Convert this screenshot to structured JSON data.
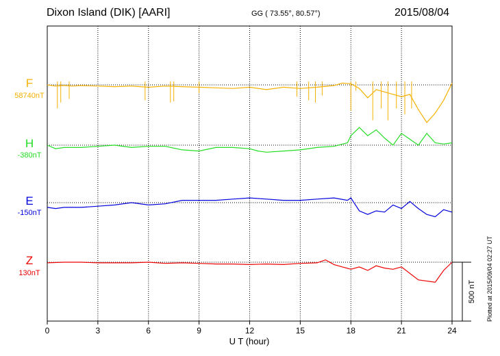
{
  "header": {
    "station": "Dixon Island (DIK)  [AARI]",
    "coords": "GG ( 73.55°,  80.57°)",
    "date": "2015/08/04"
  },
  "footer": {
    "plotted": "Plotted at 2015/09/04 02:27 UT"
  },
  "colors": {
    "F": "#f5b000",
    "H": "#22dd22",
    "E": "#0000dd",
    "Z": "#ee0000"
  },
  "chart_data": {
    "type": "line",
    "xlabel": "U T (hour)",
    "xlim": [
      0,
      24
    ],
    "xticks": [
      "0",
      "3",
      "6",
      "9",
      "12",
      "15",
      "18",
      "21",
      "24"
    ],
    "scale_bar": {
      "label": "500 nT",
      "value_nT": 500
    },
    "series": [
      {
        "name": "F",
        "baseline_label": "58740nT",
        "color": "#f5b000",
        "points": [
          [
            0,
            0
          ],
          [
            0.5,
            -10
          ],
          [
            1,
            -5
          ],
          [
            1.5,
            -10
          ],
          [
            2,
            -5
          ],
          [
            3,
            -10
          ],
          [
            4,
            -15
          ],
          [
            5,
            -10
          ],
          [
            5.5,
            -15
          ],
          [
            6,
            -20
          ],
          [
            7,
            -10
          ],
          [
            8,
            -15
          ],
          [
            9,
            -20
          ],
          [
            10,
            -25
          ],
          [
            11,
            -30
          ],
          [
            12,
            -20
          ],
          [
            13,
            -40
          ],
          [
            14,
            -20
          ],
          [
            15,
            -30
          ],
          [
            16,
            -20
          ],
          [
            17,
            -5
          ],
          [
            17.5,
            15
          ],
          [
            18,
            10
          ],
          [
            18.5,
            -30
          ],
          [
            19,
            -110
          ],
          [
            19.5,
            -40
          ],
          [
            20,
            -60
          ],
          [
            20.5,
            -80
          ],
          [
            21,
            -100
          ],
          [
            21.5,
            -80
          ],
          [
            22,
            -210
          ],
          [
            22.5,
            -320
          ],
          [
            23,
            -240
          ],
          [
            23.5,
            -130
          ],
          [
            24,
            15
          ]
        ],
        "spikes": [
          [
            0.6,
            200
          ],
          [
            0.8,
            150
          ],
          [
            1.3,
            120
          ],
          [
            5.8,
            130
          ],
          [
            7.3,
            150
          ],
          [
            7.5,
            140
          ],
          [
            9,
            70
          ],
          [
            14.8,
            100
          ],
          [
            15.5,
            130
          ],
          [
            15.9,
            150
          ],
          [
            16.3,
            90
          ],
          [
            18,
            220
          ],
          [
            18.3,
            50
          ],
          [
            19.3,
            300
          ],
          [
            19.8,
            200
          ],
          [
            20.2,
            300
          ],
          [
            20.7,
            200
          ],
          [
            21.2,
            250
          ],
          [
            21.6,
            200
          ]
        ]
      },
      {
        "name": "H",
        "baseline_label": "-380nT",
        "color": "#22dd22",
        "points": [
          [
            0,
            0
          ],
          [
            0.5,
            -30
          ],
          [
            1,
            -20
          ],
          [
            2,
            -20
          ],
          [
            3,
            -10
          ],
          [
            4,
            0
          ],
          [
            5,
            -20
          ],
          [
            6,
            -10
          ],
          [
            7,
            -10
          ],
          [
            8,
            -40
          ],
          [
            9,
            -50
          ],
          [
            10,
            -20
          ],
          [
            11,
            -20
          ],
          [
            12,
            -30
          ],
          [
            12.5,
            -50
          ],
          [
            13,
            -60
          ],
          [
            14,
            -50
          ],
          [
            15,
            -40
          ],
          [
            16,
            -20
          ],
          [
            17,
            -10
          ],
          [
            17.8,
            20
          ],
          [
            18,
            80
          ],
          [
            18.5,
            150
          ],
          [
            19,
            80
          ],
          [
            19.5,
            130
          ],
          [
            20,
            60
          ],
          [
            20.5,
            0
          ],
          [
            21,
            100
          ],
          [
            21.5,
            50
          ],
          [
            22,
            0
          ],
          [
            22.5,
            100
          ],
          [
            23,
            20
          ],
          [
            23.5,
            10
          ],
          [
            24,
            20
          ]
        ]
      },
      {
        "name": "E",
        "baseline_label": "-150nT",
        "color": "#0000dd",
        "points": [
          [
            0,
            -40
          ],
          [
            0.5,
            -50
          ],
          [
            1,
            -40
          ],
          [
            2,
            -40
          ],
          [
            3,
            -30
          ],
          [
            4,
            -20
          ],
          [
            5,
            0
          ],
          [
            6,
            -20
          ],
          [
            7,
            -10
          ],
          [
            8,
            20
          ],
          [
            9,
            20
          ],
          [
            10,
            20
          ],
          [
            11,
            30
          ],
          [
            12,
            40
          ],
          [
            13,
            30
          ],
          [
            14,
            20
          ],
          [
            15,
            20
          ],
          [
            16,
            30
          ],
          [
            17,
            40
          ],
          [
            17.8,
            20
          ],
          [
            18,
            40
          ],
          [
            18.5,
            -70
          ],
          [
            19,
            -100
          ],
          [
            19.5,
            -70
          ],
          [
            20,
            -80
          ],
          [
            20.5,
            -20
          ],
          [
            21,
            -50
          ],
          [
            21.5,
            10
          ],
          [
            22,
            -50
          ],
          [
            22.5,
            -100
          ],
          [
            23,
            -120
          ],
          [
            23.5,
            -60
          ],
          [
            24,
            -80
          ]
        ]
      },
      {
        "name": "Z",
        "baseline_label": "130nT",
        "color": "#ee0000",
        "points": [
          [
            0,
            -5
          ],
          [
            1,
            0
          ],
          [
            2,
            0
          ],
          [
            3,
            -5
          ],
          [
            4,
            -5
          ],
          [
            5,
            -5
          ],
          [
            6,
            0
          ],
          [
            7,
            -10
          ],
          [
            8,
            -5
          ],
          [
            9,
            -10
          ],
          [
            10,
            -15
          ],
          [
            11,
            -15
          ],
          [
            12,
            -20
          ],
          [
            13,
            -15
          ],
          [
            14,
            -20
          ],
          [
            15,
            -10
          ],
          [
            16,
            -5
          ],
          [
            16.5,
            20
          ],
          [
            17,
            -20
          ],
          [
            17.5,
            -40
          ],
          [
            18,
            -60
          ],
          [
            18.5,
            -40
          ],
          [
            19,
            -70
          ],
          [
            19.5,
            -30
          ],
          [
            20,
            -50
          ],
          [
            20.5,
            -60
          ],
          [
            21,
            -40
          ],
          [
            22,
            -150
          ],
          [
            23,
            -170
          ],
          [
            23.5,
            -70
          ],
          [
            24,
            0
          ]
        ]
      }
    ]
  }
}
